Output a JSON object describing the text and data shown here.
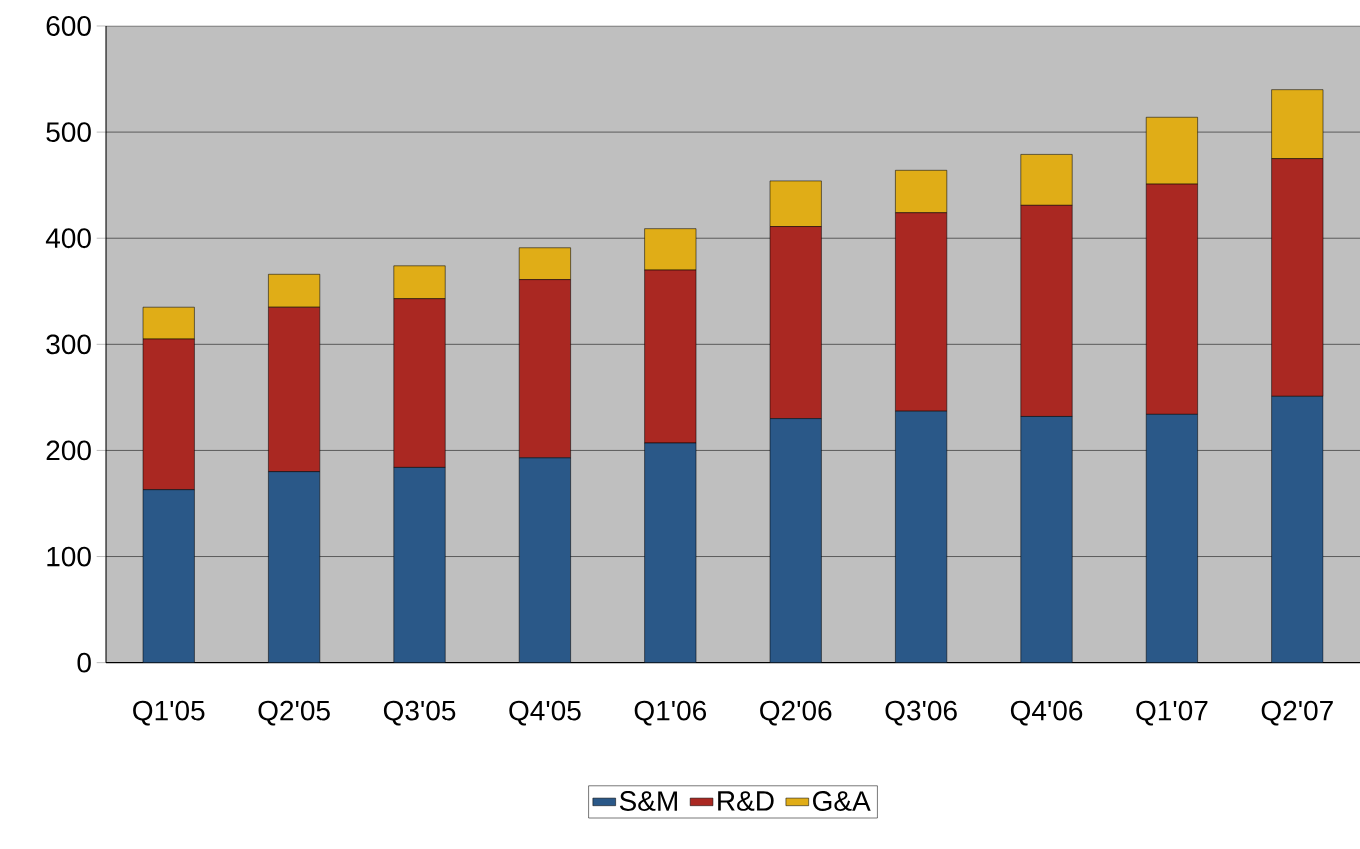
{
  "chart_data": {
    "type": "bar",
    "stacked": true,
    "categories": [
      "Q1'05",
      "Q2'05",
      "Q3'05",
      "Q4'05",
      "Q1'06",
      "Q2'06",
      "Q3'06",
      "Q4'06",
      "Q1'07",
      "Q2'07"
    ],
    "series": [
      {
        "name": "S&M",
        "color": "#2a5888",
        "values": [
          163,
          180,
          184,
          193,
          207,
          230,
          237,
          232,
          234,
          251
        ]
      },
      {
        "name": "R&D",
        "color": "#aa2822",
        "values": [
          142,
          155,
          159,
          168,
          163,
          181,
          187,
          199,
          217,
          224
        ]
      },
      {
        "name": "G&A",
        "color": "#e0ad17",
        "values": [
          30,
          31,
          31,
          30,
          39,
          43,
          40,
          48,
          63,
          65
        ]
      }
    ],
    "ylim": [
      0,
      600
    ],
    "yticks": [
      0,
      100,
      200,
      300,
      400,
      500,
      600
    ],
    "grid": "y",
    "legend": "bottom"
  }
}
